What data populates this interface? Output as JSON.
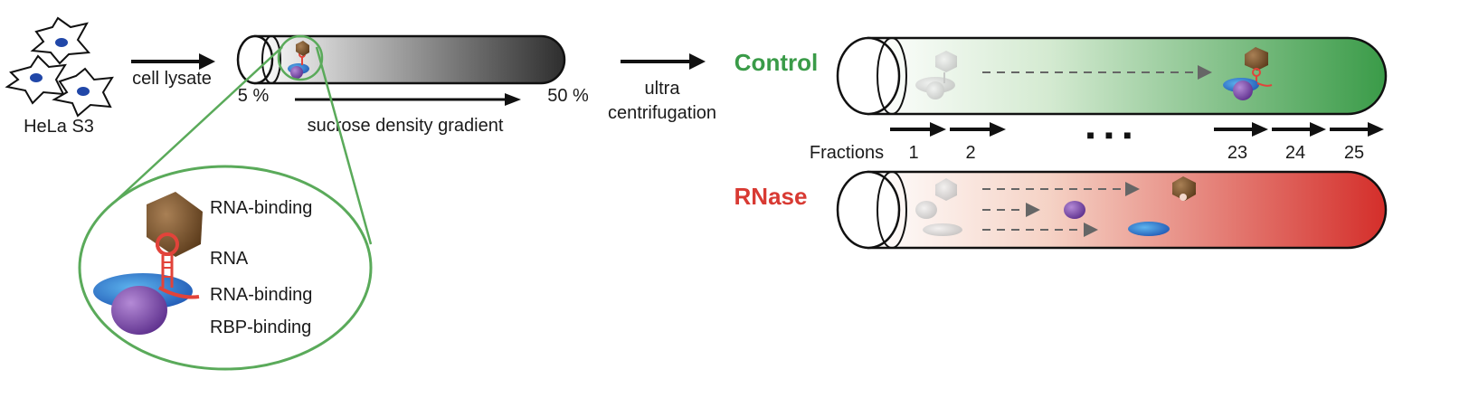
{
  "cells": {
    "label": "HeLa S3"
  },
  "lysate": {
    "label": "cell lysate"
  },
  "gradient": {
    "low": "5 %",
    "high": "50 %",
    "label": "sucrose density gradient"
  },
  "centrifugation": {
    "line1": "ultra",
    "line2": "centrifugation"
  },
  "control": {
    "label": "Control",
    "color": "#3a9b48"
  },
  "rnase": {
    "label": "RNase",
    "color": "#d83a33"
  },
  "fractions": {
    "label": "Fractions",
    "numbers": [
      "1",
      "2",
      "23",
      "24",
      "25"
    ],
    "ellipsis": "■ ■ ■"
  },
  "legend": {
    "items": [
      {
        "label": "RNA-binding",
        "color": "#9a6a2e"
      },
      {
        "label": "RNA",
        "color": "#e2433a"
      },
      {
        "label": "RNA-binding",
        "color": "#3b67b8"
      },
      {
        "label": "RBP-binding",
        "color": "#7a4aa0"
      }
    ]
  },
  "colors": {
    "zoom": "#5aaa5a",
    "arrow": "#111111",
    "dash": "#666666"
  }
}
